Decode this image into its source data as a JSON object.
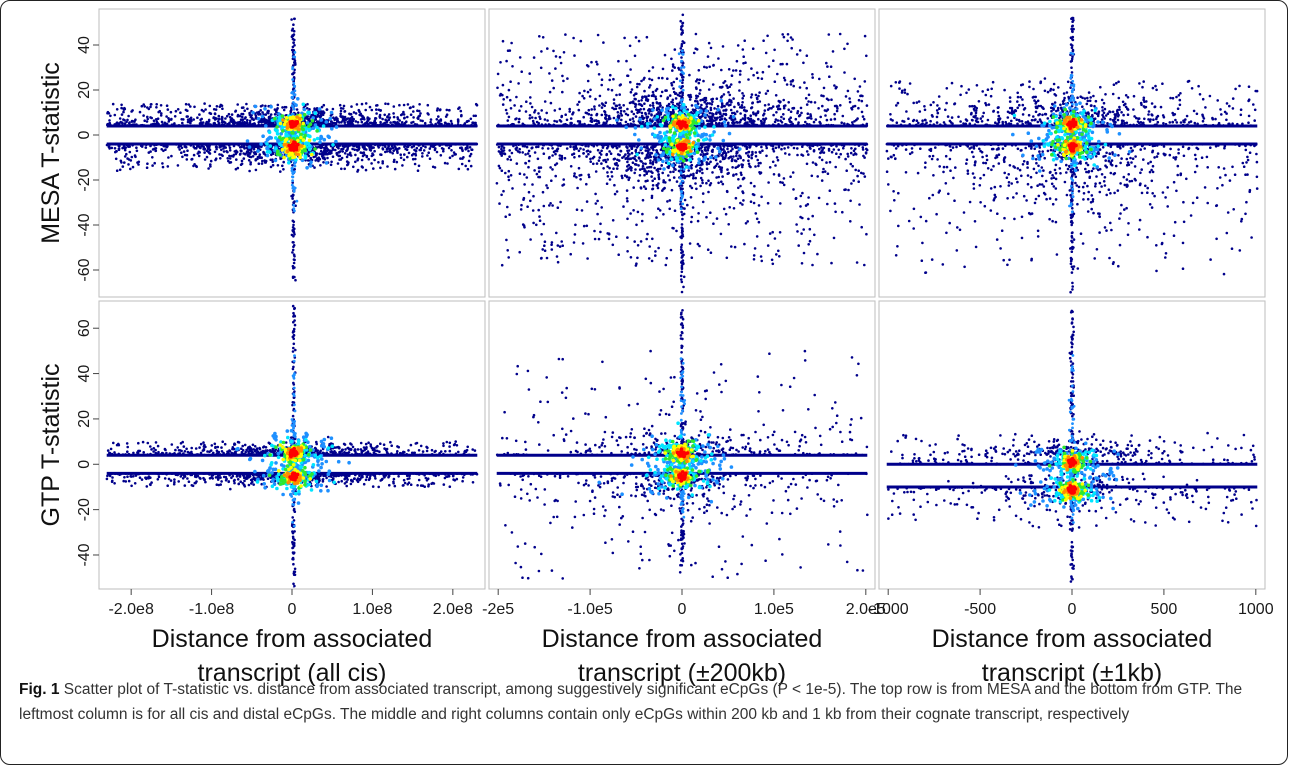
{
  "caption": {
    "label": "Fig. 1",
    "text": "Scatter plot of T-statistic vs. distance from associated transcript, among suggestively significant eCpGs (P < 1e-5). The top row is from MESA and the bottom from GTP. The leftmost column is for all cis and distal eCpGs. The middle and right columns contain only eCpGs within 200 kb and 1 kb from their cognate transcript, respectively"
  },
  "colors": {
    "low_density": "#00008b",
    "mid_density": "#1e90ff",
    "cyan": "#00e5ff",
    "green": "#2ee82e",
    "yellow": "#ffff00",
    "orange": "#ff8c00",
    "high_density": "#ff0000"
  },
  "chart_data": [
    {
      "type": "scatter",
      "row": "MESA",
      "column": "all cis",
      "ylabel": "MESA T-statistic",
      "xlabel": "",
      "xlim": [
        -240000000,
        240000000
      ],
      "ylim": [
        -72,
        56
      ],
      "xticks": [],
      "yticks": [
        {
          "v": 40,
          "label": "40"
        },
        {
          "v": 20,
          "label": "20"
        },
        {
          "v": 0,
          "label": "0"
        },
        {
          "v": -20,
          "label": "-20"
        },
        {
          "v": -40,
          "label": "-40"
        },
        {
          "v": -60,
          "label": "-60"
        }
      ],
      "bands": {
        "pos": [
          4,
          14
        ],
        "neg": [
          -4,
          -16
        ]
      },
      "spike": {
        "x": 2000000,
        "ymax": 54,
        "ymin": -70
      },
      "cloud": {
        "ymax": 14,
        "ymin": -16,
        "density": 1400
      }
    },
    {
      "type": "scatter",
      "row": "MESA",
      "column": "±200kb",
      "ylabel": "",
      "xlabel": "",
      "xlim": [
        -210000,
        210000
      ],
      "ylim": [
        -72,
        56
      ],
      "xticks": [],
      "yticks": [],
      "bands": {
        "pos": [
          4,
          45
        ],
        "neg": [
          -4,
          -58
        ]
      },
      "spike": {
        "x": 0,
        "ymax": 54,
        "ymin": -70
      },
      "cloud": {
        "ymax": 28,
        "ymin": -32,
        "density": 1600
      }
    },
    {
      "type": "scatter",
      "row": "MESA",
      "column": "±1kb",
      "ylabel": "",
      "xlabel": "",
      "xlim": [
        -1050,
        1050
      ],
      "ylim": [
        -72,
        56
      ],
      "xticks": [],
      "yticks": [],
      "bands": {
        "pos": [
          4,
          24
        ],
        "neg": [
          -4,
          -62
        ]
      },
      "spike": {
        "x": 0,
        "ymax": 54,
        "ymin": -70
      },
      "cloud": {
        "ymax": 24,
        "ymin": -45,
        "density": 900
      }
    },
    {
      "type": "scatter",
      "row": "GTP",
      "column": "all cis",
      "ylabel": "GTP T-statistic",
      "xlabel": "Distance from associated transcript (all cis)",
      "xlim": [
        -240000000,
        240000000
      ],
      "ylim": [
        -55,
        72
      ],
      "xticks": [
        {
          "v": -200000000,
          "label": "-2.0e8"
        },
        {
          "v": -100000000,
          "label": "-1.0e8"
        },
        {
          "v": 0,
          "label": "0"
        },
        {
          "v": 100000000,
          "label": "1.0e8"
        },
        {
          "v": 200000000,
          "label": "2.0e8"
        }
      ],
      "yticks": [
        {
          "v": 60,
          "label": "60"
        },
        {
          "v": 40,
          "label": "40"
        },
        {
          "v": 20,
          "label": "20"
        },
        {
          "v": 0,
          "label": "0"
        },
        {
          "v": -20,
          "label": "-20"
        },
        {
          "v": -40,
          "label": "-40"
        }
      ],
      "bands": {
        "pos": [
          4,
          10
        ],
        "neg": [
          -4,
          -10
        ]
      },
      "spike": {
        "x": 2000000,
        "ymax": 70,
        "ymin": -55
      },
      "cloud": {
        "ymax": 10,
        "ymin": -10,
        "density": 900
      }
    },
    {
      "type": "scatter",
      "row": "GTP",
      "column": "±200kb",
      "ylabel": "",
      "xlabel": "Distance from associated transcript (±200kb)",
      "xlim": [
        -210000,
        210000
      ],
      "ylim": [
        -55,
        72
      ],
      "xticks": [
        {
          "v": -200000,
          "label": "-2e5"
        },
        {
          "v": -100000,
          "label": "-1.0e5"
        },
        {
          "v": 0,
          "label": "0"
        },
        {
          "v": 100000,
          "label": "1.0e5"
        },
        {
          "v": 200000,
          "label": "2.0e5"
        }
      ],
      "yticks": [],
      "bands": {
        "pos": [
          4,
          50
        ],
        "neg": [
          -4,
          -52
        ]
      },
      "spike": {
        "x": 0,
        "ymax": 70,
        "ymin": -48
      },
      "cloud": {
        "ymax": 22,
        "ymin": -26,
        "density": 500
      }
    },
    {
      "type": "scatter",
      "row": "GTP",
      "column": "±1kb",
      "ylabel": "",
      "xlabel": "Distance from associated transcript (±1kb)",
      "xlim": [
        -1050,
        1050
      ],
      "ylim": [
        -55,
        72
      ],
      "xticks": [
        {
          "v": -1000,
          "label": "-1000"
        },
        {
          "v": -500,
          "label": "-500"
        },
        {
          "v": 0,
          "label": "0"
        },
        {
          "v": 500,
          "label": "500"
        },
        {
          "v": 1000,
          "label": "1000"
        }
      ],
      "yticks": [],
      "bands": {
        "pos": [
          0,
          14
        ],
        "neg": [
          -10,
          -28
        ]
      },
      "spike": {
        "x": 0,
        "ymax": 70,
        "ymin": -52
      },
      "cloud": {
        "ymax": 14,
        "ymin": -28,
        "density": 500
      }
    }
  ]
}
